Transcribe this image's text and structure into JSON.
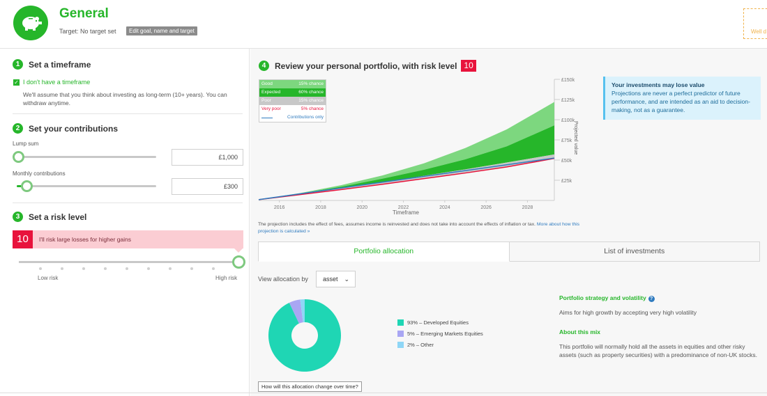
{
  "header": {
    "title": "General",
    "target": "Target: No target set",
    "edit_label": "Edit goal, name and target",
    "wait_label": "Well d"
  },
  "steps": {
    "timeframe": {
      "number": "1",
      "title": "Set a timeframe",
      "checkbox_label": "I don't have a timeframe",
      "checked": true,
      "note": "We'll assume that you think about investing as long-term (10+ years). You can withdraw anytime."
    },
    "contributions": {
      "number": "2",
      "title": "Set your contributions",
      "lump_sum_label": "Lump sum",
      "lump_sum_value": "£1,000",
      "lump_sum_slider_fraction": 0.0,
      "monthly_label": "Monthly contributions",
      "monthly_value": "£300",
      "monthly_slider_fraction": 0.06
    },
    "risk": {
      "number": "3",
      "title": "Set a risk level",
      "level": "10",
      "description": "I'll risk large losses for higher gains",
      "low_label": "Low risk",
      "high_label": "High risk",
      "level_fraction": 1.0
    },
    "review": {
      "number": "4",
      "title": "Review your personal portfolio, with risk level",
      "risk_level": "10"
    }
  },
  "chart_data": {
    "type": "area",
    "xlabel": "Timeframe",
    "ylabel": "Projected value",
    "x_ticks": [
      "2016",
      "2018",
      "2020",
      "2022",
      "2024",
      "2026",
      "2028"
    ],
    "y_ticks": [
      "£25k",
      "£50k",
      "£75k",
      "£100k",
      "£125k",
      "£150k"
    ],
    "xlim": [
      2015,
      2029.3
    ],
    "ylim": [
      0,
      150000
    ],
    "legend": [
      {
        "label": "Good",
        "chance": "15% chance",
        "color": "#7dd77f"
      },
      {
        "label": "Expected",
        "chance": "60% chance",
        "color": "#26b62a"
      },
      {
        "label": "Poor",
        "chance": "15% chance",
        "color": "#c8c8c8"
      },
      {
        "label": "Very poor",
        "chance": "5% chance",
        "color": "#e8133c"
      },
      {
        "label": "Contributions only",
        "chance": "",
        "color": "#2f7bbf"
      }
    ],
    "series": [
      {
        "name": "Good",
        "x": [
          2015,
          2017,
          2019,
          2021,
          2023,
          2025,
          2027,
          2029.3
        ],
        "values": [
          1000,
          9000,
          19000,
          31000,
          46000,
          65000,
          88000,
          122000
        ]
      },
      {
        "name": "Expected",
        "x": [
          2015,
          2017,
          2019,
          2021,
          2023,
          2025,
          2027,
          2029.3
        ],
        "values": [
          1000,
          8500,
          17000,
          27000,
          38000,
          51000,
          67000,
          93000
        ]
      },
      {
        "name": "Poor",
        "x": [
          2015,
          2017,
          2019,
          2021,
          2023,
          2025,
          2027,
          2029.3
        ],
        "values": [
          1000,
          7800,
          15000,
          22500,
          30500,
          38500,
          47000,
          57000
        ]
      },
      {
        "name": "Very poor",
        "x": [
          2015,
          2017,
          2019,
          2021,
          2023,
          2025,
          2027,
          2029.3
        ],
        "values": [
          1000,
          7200,
          13500,
          20000,
          27000,
          34000,
          41500,
          52000
        ]
      },
      {
        "name": "Contributions only",
        "x": [
          2015,
          2017,
          2019,
          2021,
          2023,
          2025,
          2027,
          2029.3
        ],
        "values": [
          1000,
          8200,
          15400,
          22600,
          29800,
          37000,
          44200,
          52500
        ]
      }
    ]
  },
  "warning": {
    "title": "Your investments may lose value",
    "text": "Projections are never a perfect predictor of future performance, and are intended as an aid to decision-making, not as a guarantee."
  },
  "disclaimer": {
    "text": "The projection includes the effect of fees, assumes income is reinvested and does not take into account the effects of inflation or tax.",
    "link": "More about how this projection is calculated »"
  },
  "tabs": {
    "allocation": "Portfolio allocation",
    "investments": "List of investments"
  },
  "allocation": {
    "view_label": "View allocation by",
    "view_value": "asset",
    "items": [
      {
        "label": "93% – Developed Equities",
        "percent": 93,
        "color": "#1fd6b4"
      },
      {
        "label": "5% – Emerging Markets Equities",
        "percent": 5,
        "color": "#a9a6f3"
      },
      {
        "label": "2% – Other",
        "percent": 2,
        "color": "#8fd6f6"
      }
    ],
    "change_button": "How will this allocation change over time?"
  },
  "strategy": {
    "title": "Portfolio strategy and volatility",
    "text": "Aims for high growth by accepting very high volatility",
    "mix_title": "About this mix",
    "mix_text": "This portfolio will normally hold all the assets in equities and other risky assets (such as property securities) with a predominance of non-UK stocks."
  }
}
